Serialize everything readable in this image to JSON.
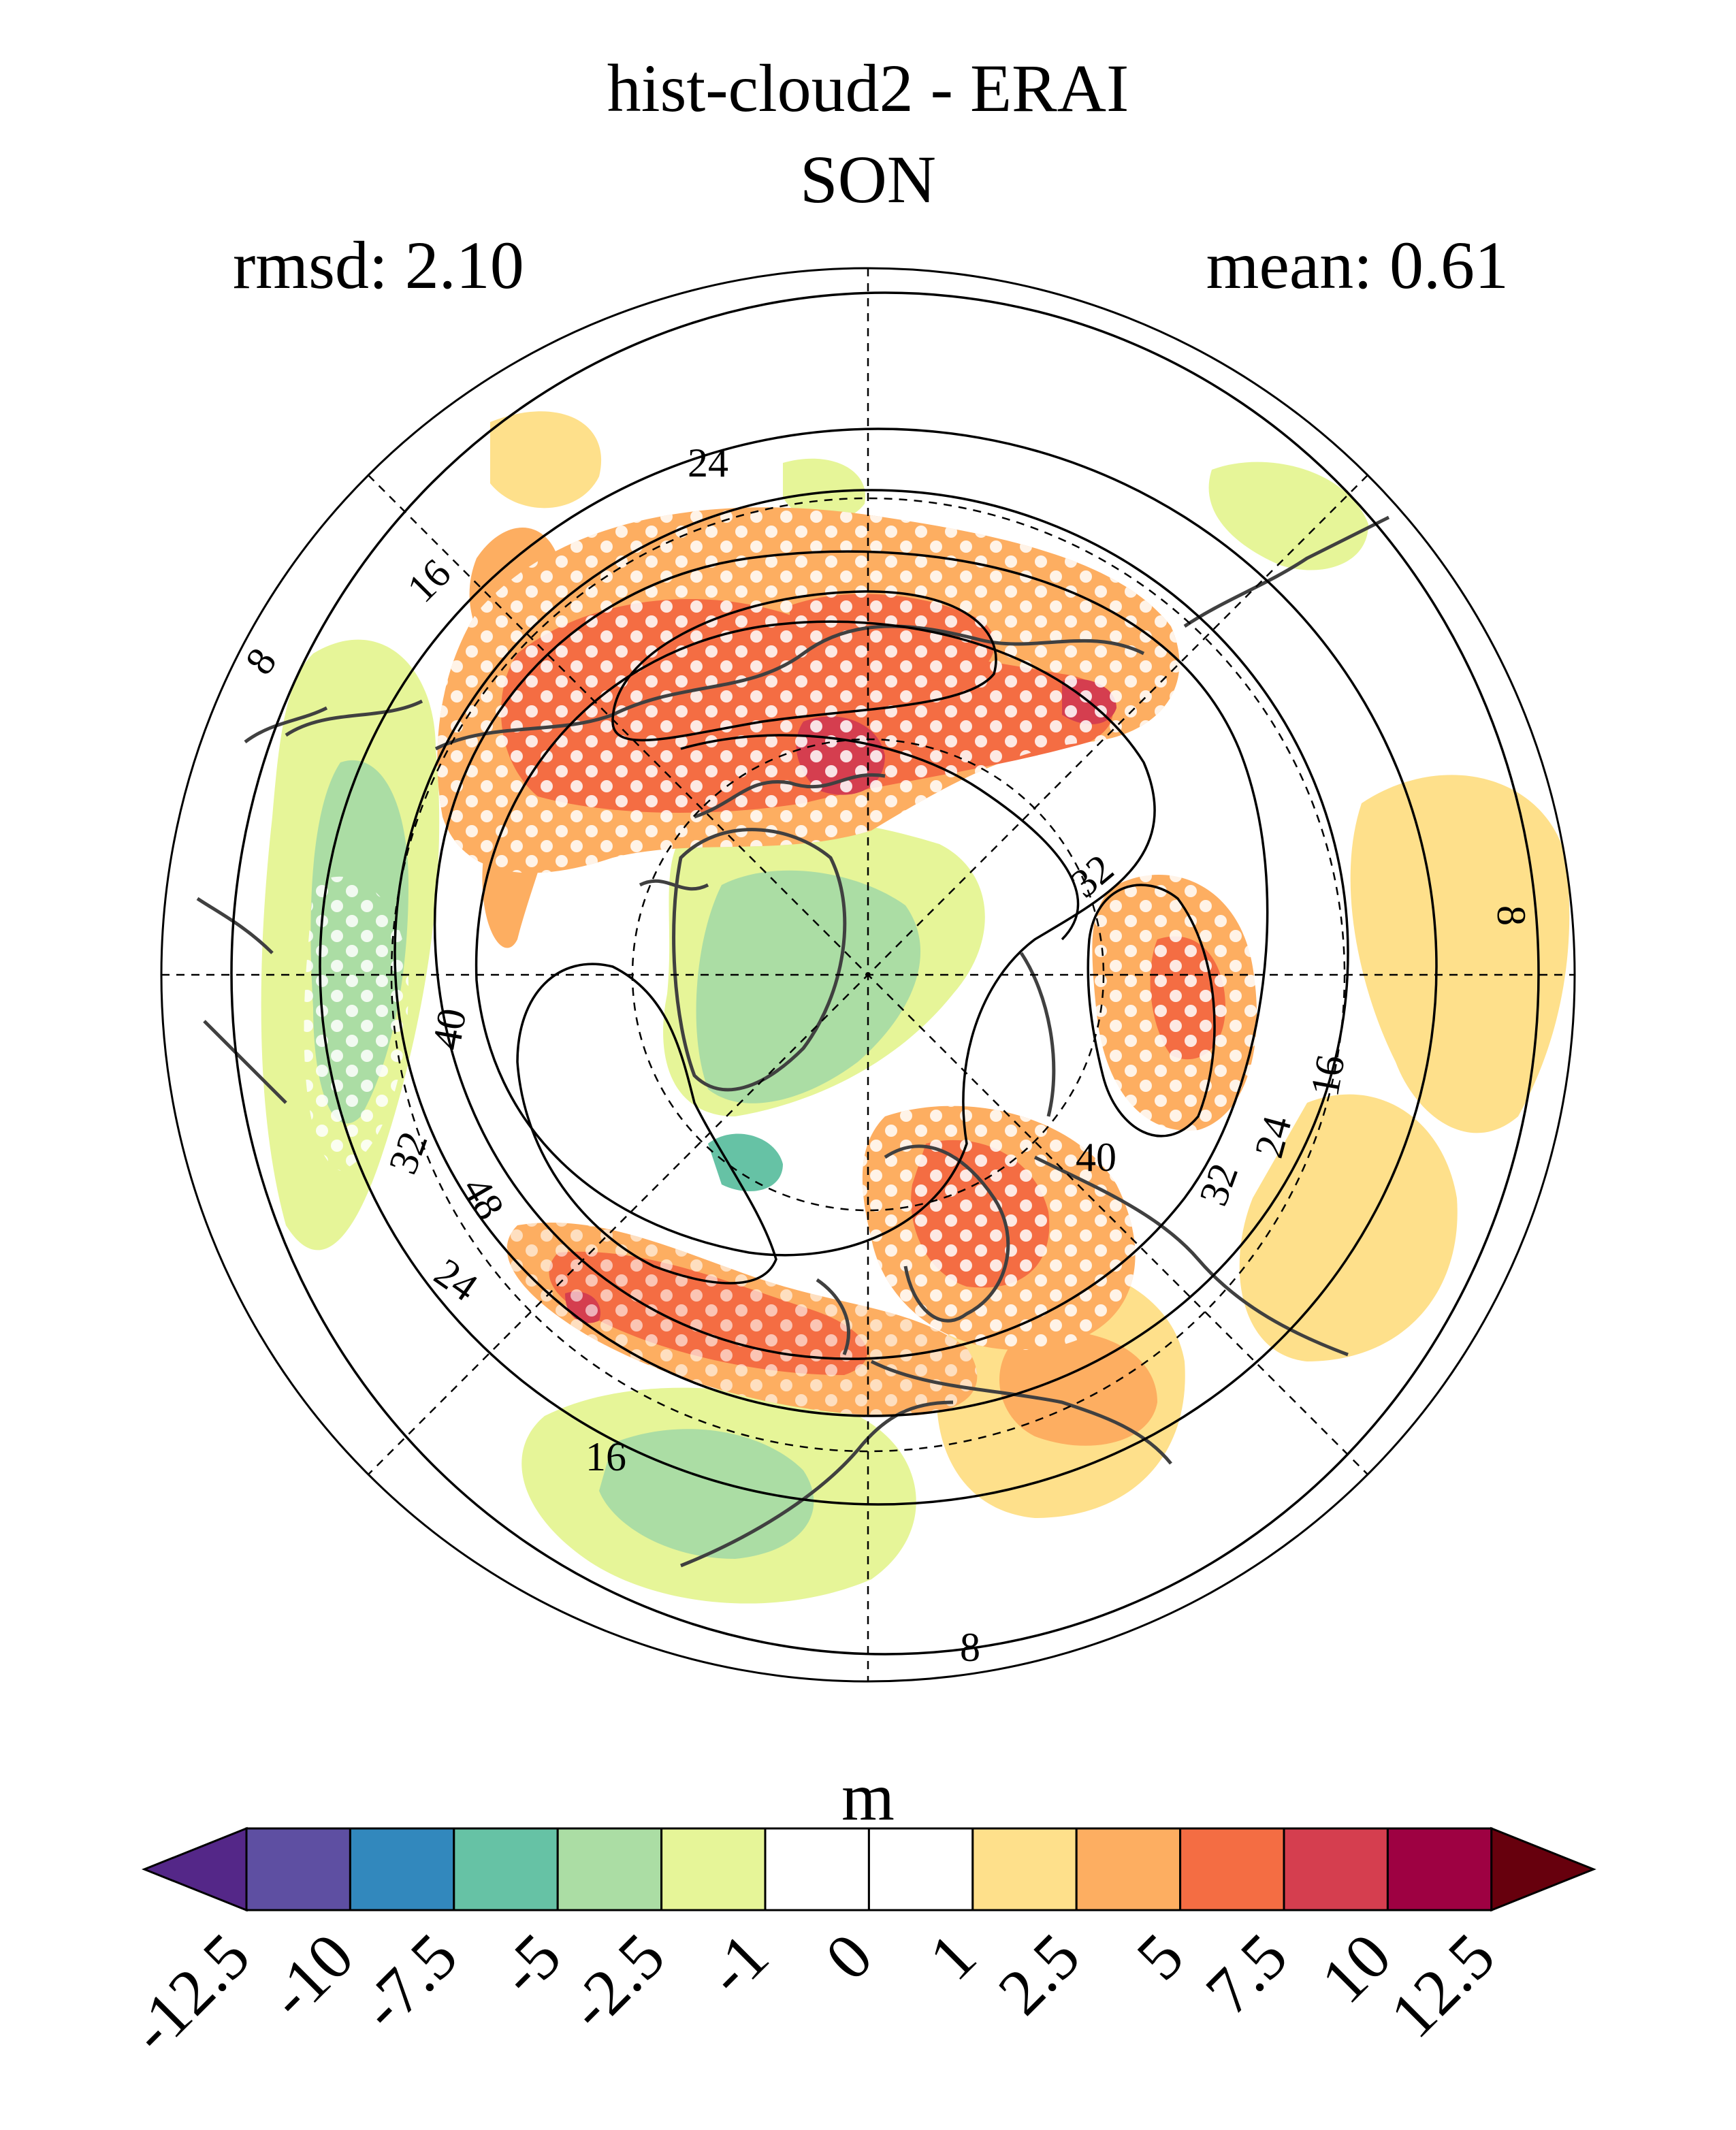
{
  "title": {
    "line1": "hist-cloud2 - ERAI",
    "line2": "SON"
  },
  "stats": {
    "rmsd_label": "rmsd: 2.10",
    "mean_label": "mean: 0.61"
  },
  "map": {
    "projection": "north polar stereographic",
    "contour_labels": [
      "8",
      "16",
      "24",
      "32",
      "40",
      "48",
      "40",
      "32",
      "24",
      "16",
      "8",
      "8",
      "16",
      "24",
      "32",
      "8",
      "16"
    ],
    "stippling": "white dots mark significant differences",
    "colors": {
      "orange": "#fdae61",
      "dark_orange": "#f46d43",
      "red": "#d53e4f",
      "yellow": "#fee08b",
      "light_green": "#e6f598",
      "green": "#abdda4",
      "teal": "#66c2a5"
    }
  },
  "colorbar": {
    "unit": "m",
    "tick_labels": [
      "-12.5",
      "-10",
      "-7.5",
      "-5",
      "-2.5",
      "-1",
      "0",
      "1",
      "2.5",
      "5",
      "7.5",
      "10",
      "12.5"
    ],
    "boxes": [
      "#5e4fa2",
      "#3288bd",
      "#66c2a5",
      "#abdda4",
      "#e6f598",
      "#ffffff",
      "#ffffff",
      "#fee08b",
      "#fdae61",
      "#f46d43",
      "#d53e4f",
      "#9e0142"
    ],
    "low_extend": "#542788",
    "high_extend": "#67000d"
  }
}
